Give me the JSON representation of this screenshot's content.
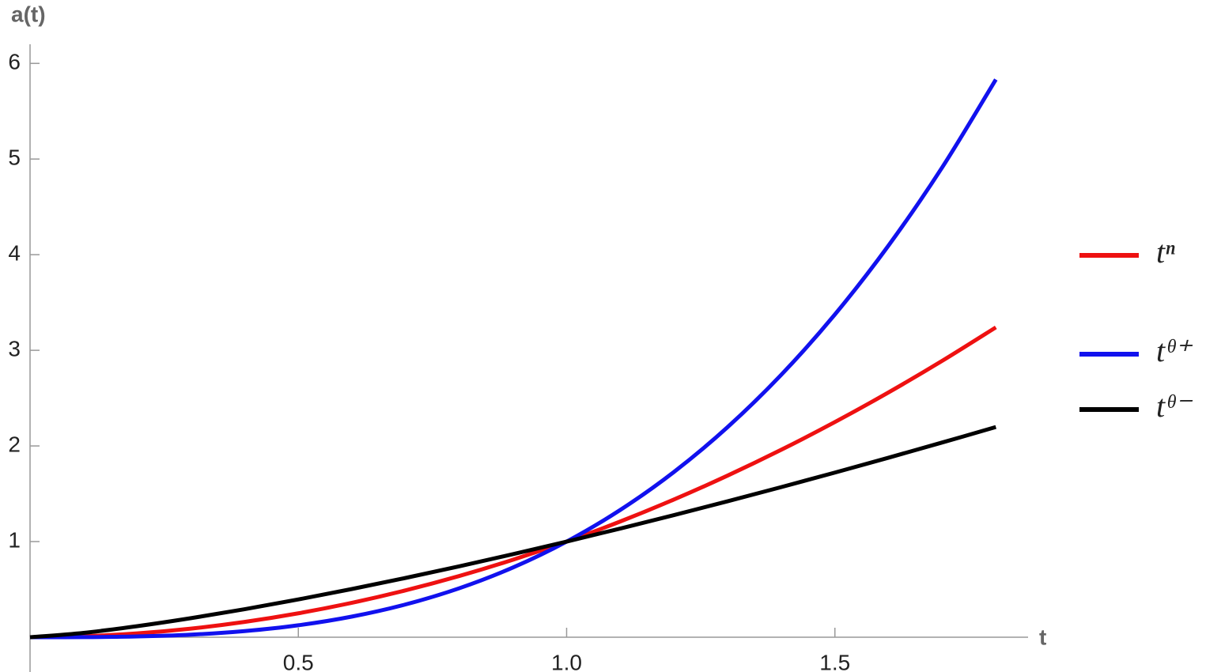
{
  "chart_data": {
    "type": "line",
    "xlabel": "t",
    "ylabel": "a(t)",
    "x": [
      0,
      0.1,
      0.2,
      0.3,
      0.4,
      0.5,
      0.6,
      0.7,
      0.8,
      0.9,
      1.0,
      1.1,
      1.2,
      1.3,
      1.4,
      1.5,
      1.6,
      1.7,
      1.8
    ],
    "series": [
      {
        "name": "tⁿ",
        "color": "#ee1111",
        "values": [
          0,
          0.01,
          0.04,
          0.09,
          0.16,
          0.25,
          0.36,
          0.49,
          0.64,
          0.81,
          1,
          1.21,
          1.44,
          1.69,
          1.96,
          2.25,
          2.56,
          2.89,
          3.24
        ]
      },
      {
        "name": "tᶿ⁺",
        "color": "#1111ee",
        "values": [
          0,
          0.001,
          0.008,
          0.027,
          0.064,
          0.125,
          0.216,
          0.343,
          0.512,
          0.729,
          1,
          1.331,
          1.728,
          2.197,
          2.744,
          3.375,
          4.096,
          4.913,
          5.832
        ]
      },
      {
        "name": "tᶿ⁻",
        "color": "#000000",
        "values": [
          0,
          0.0457,
          0.1157,
          0.1992,
          0.2929,
          0.395,
          0.5043,
          0.62,
          0.7416,
          0.8683,
          1,
          1.1362,
          1.2768,
          1.4213,
          1.5697,
          1.7217,
          1.8773,
          2.036,
          2.198
        ]
      }
    ],
    "xlim": [
      0,
      1.86
    ],
    "ylim": [
      0,
      6.2
    ],
    "xticks": [
      0.5,
      {
        "value": 1.0,
        "label": "1.0"
      },
      1.5
    ],
    "yticks": [
      1,
      2,
      3,
      4,
      5,
      6
    ],
    "legend": "right"
  }
}
